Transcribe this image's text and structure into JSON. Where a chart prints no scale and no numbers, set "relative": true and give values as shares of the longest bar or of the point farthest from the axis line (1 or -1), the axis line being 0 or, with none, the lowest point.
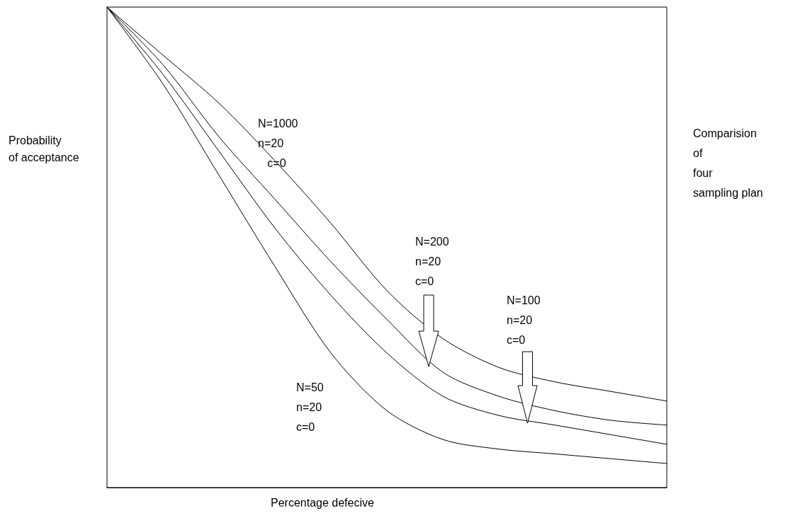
{
  "chart_data": {
    "type": "line",
    "title": "Comparision\nof\nfour\nsampling plan",
    "xlabel": "Percentage defecive",
    "ylabel": "Probability\nof acceptance",
    "relative": true,
    "marker": "none",
    "line_style": "solid",
    "grid": false,
    "categories": [
      null,
      null,
      null,
      null,
      null,
      null,
      null,
      null,
      null,
      null,
      null
    ],
    "annotations": [
      "N=1000\nn=20\n   c=0",
      "N=200\nn=20\nc=0",
      "N=100\nn=20\nc=0",
      "N=50\nn=20\nc=0"
    ],
    "series": [
      {
        "color": "#000000",
        "values": [
          1,
          0.9,
          0.8,
          0.68,
          0.55,
          0.41,
          0.31,
          0.25,
          0.22,
          0.2,
          0.18
        ]
      },
      {
        "color": "#000000",
        "values": [
          1,
          0.88,
          0.73,
          0.6,
          0.47,
          0.35,
          0.24,
          0.19,
          0.16,
          0.14,
          0.13
        ]
      },
      {
        "color": "#000000",
        "values": [
          1,
          0.86,
          0.7,
          0.54,
          0.4,
          0.28,
          0.19,
          0.15,
          0.13,
          0.11,
          0.09
        ]
      },
      {
        "color": "#000000",
        "values": [
          1,
          0.84,
          0.65,
          0.46,
          0.28,
          0.16,
          0.1,
          0.08,
          0.07,
          0.06,
          0.05
        ]
      }
    ]
  }
}
